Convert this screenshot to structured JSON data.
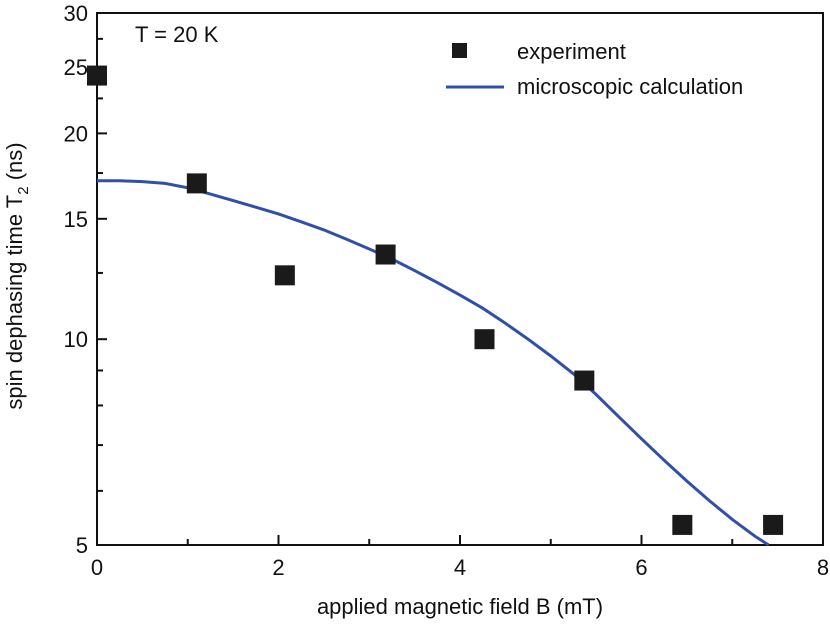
{
  "chart_data": {
    "type": "scatter",
    "annotation": "T = 20 K",
    "xlabel": "applied magnetic field B (mT)",
    "ylabel_main": "spin dephasing time T",
    "ylabel_sub": "2",
    "ylabel_unit": " (ns)",
    "xlim": [
      0,
      8
    ],
    "ylim": [
      5,
      30
    ],
    "yscale": "log",
    "xticks": [
      0,
      2,
      4,
      6,
      8
    ],
    "xtick_labels": [
      "0",
      "2",
      "4",
      "6",
      "8"
    ],
    "yticks": [
      5,
      10,
      15,
      20,
      25,
      30
    ],
    "ytick_labels": [
      "5",
      "10",
      "15",
      "20",
      "25",
      "30"
    ],
    "legend": {
      "position": "top-right",
      "entries": [
        "experiment",
        "microscopic calculation"
      ]
    },
    "colors": {
      "experiment": "#1a1a1a",
      "calculation": "#3050a8"
    },
    "series": [
      {
        "name": "experiment",
        "kind": "markers",
        "x": [
          0.0,
          1.1,
          2.07,
          3.18,
          4.27,
          5.37,
          6.45,
          7.45
        ],
        "y": [
          24.3,
          16.9,
          12.4,
          13.3,
          10.0,
          8.7,
          5.35,
          5.35
        ]
      },
      {
        "name": "microscopic calculation",
        "kind": "line",
        "x": [
          0.0,
          0.25,
          0.5,
          0.75,
          1.0,
          1.25,
          1.5,
          1.75,
          2.0,
          2.25,
          2.5,
          2.75,
          3.0,
          3.25,
          3.5,
          3.75,
          4.0,
          4.25,
          4.5,
          4.75,
          5.0,
          5.25,
          5.5,
          5.75,
          6.0,
          6.25,
          6.5,
          6.75,
          7.0,
          7.25,
          7.4
        ],
        "y": [
          17.05,
          17.05,
          17.0,
          16.9,
          16.65,
          16.3,
          15.95,
          15.6,
          15.25,
          14.85,
          14.45,
          14.0,
          13.55,
          13.1,
          12.6,
          12.1,
          11.6,
          11.1,
          10.55,
          10.0,
          9.45,
          8.9,
          8.3,
          7.7,
          7.15,
          6.65,
          6.2,
          5.8,
          5.45,
          5.15,
          4.95
        ]
      }
    ]
  }
}
